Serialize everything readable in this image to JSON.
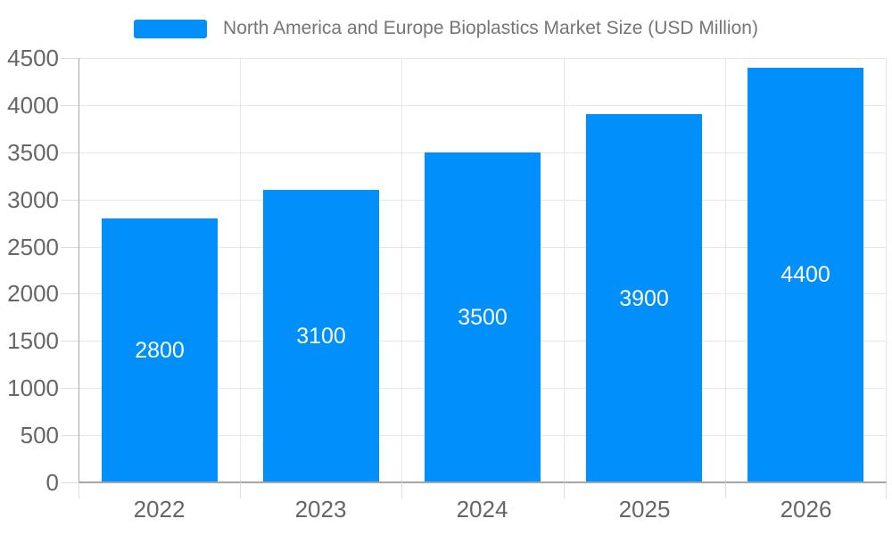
{
  "legend": {
    "label": "North America and Europe Bioplastics Market Size (USD Million)"
  },
  "chart_data": {
    "type": "bar",
    "title": "North America and Europe Bioplastics Market Size (USD Million)",
    "categories": [
      "2022",
      "2023",
      "2024",
      "2025",
      "2026"
    ],
    "series": [
      {
        "name": "North America and Europe Bioplastics Market Size (USD Million)",
        "values": [
          2800,
          3100,
          3500,
          3900,
          4400
        ]
      }
    ],
    "values": [
      2800,
      3100,
      3500,
      3900,
      4400
    ],
    "data_labels": [
      "2800",
      "3100",
      "3500",
      "3900",
      "4400"
    ],
    "xlabel": "",
    "ylabel": "",
    "ylim": [
      0,
      4500
    ],
    "ytick_step": 500,
    "ytick_labels": [
      "0",
      "500",
      "1000",
      "1500",
      "2000",
      "2500",
      "3000",
      "3500",
      "4000",
      "4500"
    ],
    "grid": true,
    "legend_position": "top",
    "colors": {
      "bar": "#008FFB",
      "bar_label_text": "#ffffff",
      "axis_line": "#a6a6a6",
      "grid_line": "#e7e7e7",
      "tick_line": "#dedede",
      "axis_text": "#666666",
      "legend_text": "#757575",
      "background": "#ffffff"
    }
  }
}
